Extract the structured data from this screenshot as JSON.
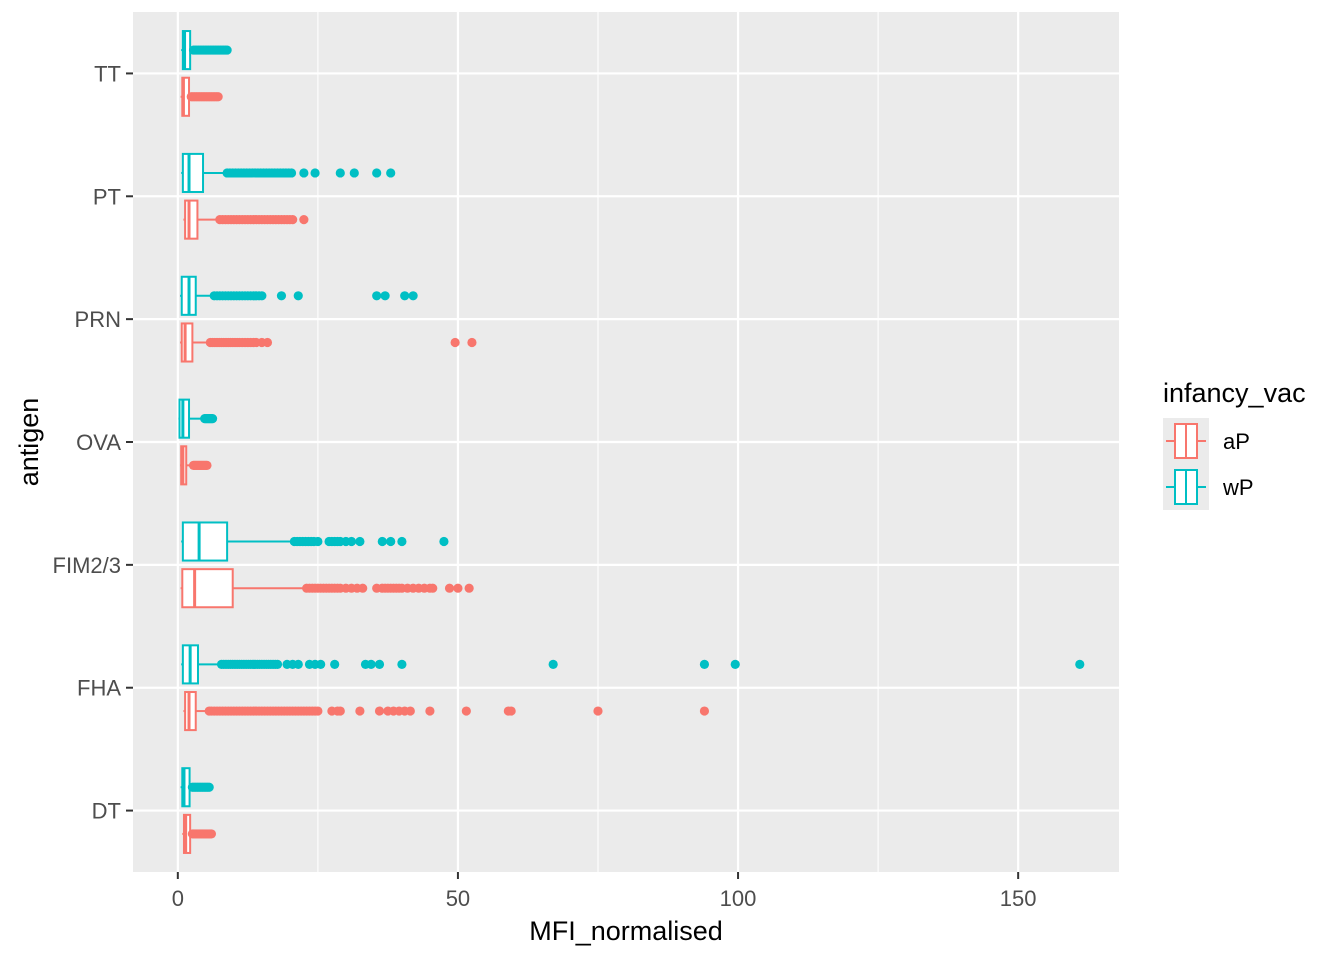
{
  "chart_data": {
    "type": "boxplot",
    "orientation": "horizontal",
    "title": "",
    "xlabel": "MFI_normalised",
    "ylabel": "antigen",
    "xlim": [
      -8,
      168
    ],
    "x_ticks": [
      0,
      50,
      100,
      150
    ],
    "x_tick_labels": [
      "0",
      "50",
      "100",
      "150"
    ],
    "categories": [
      "DT",
      "FHA",
      "FIM2/3",
      "OVA",
      "PRN",
      "PT",
      "TT"
    ],
    "legend": {
      "title": "infancy_vac",
      "position": "right",
      "entries": [
        {
          "name": "aP",
          "color": "#F8766D"
        },
        {
          "name": "wP",
          "color": "#00BFC4"
        }
      ]
    },
    "panel_background": "#EBEBEB",
    "grid": true,
    "series": [
      {
        "name": "aP",
        "color": "#F8766D",
        "boxes": [
          {
            "category": "DT",
            "whisker_low": 0.8,
            "q1": 1.1,
            "median": 1.4,
            "q3": 2.2,
            "whisker_high": 2.4,
            "outliers": [
              2.6,
              2.8,
              3.0,
              3.2,
              3.4,
              3.6,
              3.8,
              4.0,
              4.2,
              4.4,
              4.6,
              4.8,
              5.0,
              5.2,
              5.4,
              5.6,
              5.8,
              6.0
            ]
          },
          {
            "category": "FHA",
            "whisker_low": 1.0,
            "q1": 1.3,
            "median": 2.0,
            "q3": 3.2,
            "whisker_high": 5.4,
            "outliers": [
              5.6,
              6,
              6.5,
              7,
              7.5,
              8,
              8.5,
              9,
              9.5,
              10,
              10.5,
              11,
              11.5,
              12,
              12.5,
              13,
              13.5,
              14,
              14.5,
              15,
              15.5,
              16,
              16.5,
              17,
              17.5,
              18,
              18.5,
              19,
              19.5,
              20,
              20.5,
              21,
              21.5,
              22,
              22.5,
              23,
              23.5,
              24,
              24.5,
              25,
              27.5,
              28.5,
              29,
              32.5,
              36,
              37.5,
              38.5,
              39.5,
              40.5,
              41.5,
              45,
              51.5,
              59,
              59.5,
              75,
              94
            ]
          },
          {
            "category": "FIM2/3",
            "whisker_low": 0.5,
            "q1": 0.8,
            "median": 3.0,
            "q3": 9.8,
            "whisker_high": 22.8,
            "outliers": [
              23,
              23.5,
              24,
              24.5,
              25,
              25.5,
              26,
              26.5,
              27,
              27.5,
              28,
              28.5,
              29,
              30,
              31,
              32,
              33,
              35.5,
              36.5,
              37,
              37.5,
              38,
              38.5,
              39,
              39.5,
              40,
              41,
              42,
              43,
              44,
              45,
              45.5,
              48.5,
              50,
              52
            ]
          },
          {
            "category": "OVA",
            "whisker_low": 0.4,
            "q1": 0.6,
            "median": 0.9,
            "q3": 1.5,
            "whisker_high": 2.5,
            "outliers": [
              2.8,
              3.0,
              3.2,
              3.4,
              3.6,
              3.8,
              4.0,
              4.2,
              4.4,
              4.6,
              4.8,
              5.0,
              5.2
            ]
          },
          {
            "category": "PRN",
            "whisker_low": 0.4,
            "q1": 0.7,
            "median": 1.3,
            "q3": 2.6,
            "whisker_high": 5.5,
            "outliers": [
              5.8,
              6.2,
              6.6,
              7,
              7.4,
              7.8,
              8.2,
              8.6,
              9,
              9.4,
              9.8,
              10.2,
              10.6,
              11,
              11.5,
              12,
              12.5,
              13,
              13.5,
              14,
              15,
              16,
              49.5,
              52.5
            ]
          },
          {
            "category": "PT",
            "whisker_low": 1.0,
            "q1": 1.3,
            "median": 2.0,
            "q3": 3.5,
            "whisker_high": 7.3,
            "outliers": [
              7.5,
              8,
              8.5,
              9,
              9.5,
              10,
              10.5,
              11,
              11.5,
              12,
              12.5,
              13,
              13.5,
              14,
              14.5,
              15,
              15.5,
              16,
              16.5,
              17,
              17.5,
              18,
              18.5,
              19,
              19.5,
              20,
              20.5,
              22.5
            ]
          },
          {
            "category": "TT",
            "whisker_low": 0.5,
            "q1": 0.8,
            "median": 1.0,
            "q3": 2.0,
            "whisker_high": 2.2,
            "outliers": [
              2.4,
              2.7,
              3.0,
              3.3,
              3.6,
              3.9,
              4.2,
              4.5,
              4.8,
              5.1,
              5.4,
              5.7,
              6.0,
              6.3,
              6.6,
              6.9,
              7.2
            ]
          }
        ]
      },
      {
        "name": "wP",
        "color": "#00BFC4",
        "boxes": [
          {
            "category": "DT",
            "whisker_low": 0.5,
            "q1": 0.8,
            "median": 1.1,
            "q3": 2.1,
            "whisker_high": 2.3,
            "outliers": [
              2.6,
              2.9,
              3.2,
              3.5,
              3.8,
              4.1,
              4.4,
              4.7,
              5.0,
              5.3,
              5.6
            ]
          },
          {
            "category": "FHA",
            "whisker_low": 0.6,
            "q1": 0.9,
            "median": 2.2,
            "q3": 3.6,
            "whisker_high": 7.5,
            "outliers": [
              7.8,
              8.2,
              8.6,
              9,
              9.4,
              9.8,
              10.2,
              10.6,
              11,
              11.4,
              11.8,
              12.2,
              12.6,
              13,
              13.4,
              13.8,
              14.2,
              14.6,
              15,
              15.4,
              15.8,
              16.2,
              16.6,
              17,
              17.4,
              17.8,
              19.5,
              20.5,
              21.5,
              23.5,
              24.5,
              25.5,
              28,
              33.5,
              34.5,
              36,
              40,
              67,
              94,
              99.5,
              161
            ]
          },
          {
            "category": "FIM2/3",
            "whisker_low": 0.6,
            "q1": 0.9,
            "median": 3.8,
            "q3": 8.8,
            "whisker_high": 20.5,
            "outliers": [
              20.8,
              21.3,
              21.8,
              22.3,
              22.8,
              23.3,
              23.8,
              24.3,
              25,
              27,
              27.5,
              28,
              28.5,
              29,
              30,
              31,
              32.5,
              36.5,
              38,
              40,
              47.5
            ]
          },
          {
            "category": "OVA",
            "whisker_low": 0.1,
            "q1": 0.3,
            "median": 0.9,
            "q3": 2.0,
            "whisker_high": 4.6,
            "outliers": [
              4.8,
              5.0,
              5.2,
              5.4,
              5.6,
              5.8,
              6.0,
              6.2
            ]
          },
          {
            "category": "PRN",
            "whisker_low": 0.4,
            "q1": 0.7,
            "median": 2.0,
            "q3": 3.2,
            "whisker_high": 6.3,
            "outliers": [
              6.5,
              7,
              7.5,
              8,
              8.5,
              9,
              9.5,
              10,
              10.5,
              11,
              11.5,
              12,
              12.5,
              13,
              13.5,
              14,
              14.5,
              15,
              18.5,
              21.5,
              35.5,
              37,
              40.5,
              42
            ]
          },
          {
            "category": "PT",
            "whisker_low": 0.6,
            "q1": 0.9,
            "median": 2.0,
            "q3": 4.5,
            "whisker_high": 8.5,
            "outliers": [
              8.8,
              9.3,
              9.8,
              10.3,
              10.8,
              11.3,
              11.8,
              12.3,
              12.8,
              13.3,
              13.8,
              14.3,
              14.8,
              15.3,
              15.8,
              16.3,
              16.8,
              17.3,
              17.8,
              18.3,
              18.8,
              19.3,
              19.8,
              20.3,
              22.5,
              24.5,
              29,
              31.5,
              35.5,
              38
            ]
          },
          {
            "category": "TT",
            "whisker_low": 0.6,
            "q1": 0.9,
            "median": 1.2,
            "q3": 2.2,
            "whisker_high": 2.5,
            "outliers": [
              2.8,
              3.1,
              3.4,
              3.7,
              4.0,
              4.3,
              4.6,
              4.9,
              5.2,
              5.5,
              5.8,
              6.1,
              6.4,
              6.7,
              7.0,
              7.3,
              7.6,
              7.9,
              8.2,
              8.5,
              8.8
            ]
          }
        ]
      }
    ]
  }
}
